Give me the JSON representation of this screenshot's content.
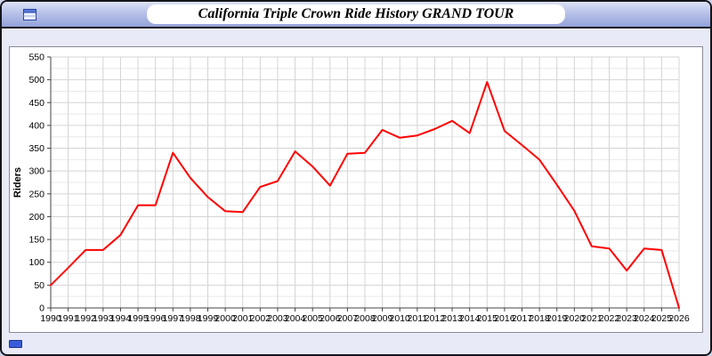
{
  "window": {
    "title": "California Triple Crown Ride History GRAND TOUR"
  },
  "icons": {
    "titlebar_icon": "window-icon",
    "bottom_chip": "blue-chip"
  },
  "colors": {
    "page_background": "#e9eaf7",
    "titlebar_gradient_top": "#dde2f5",
    "titlebar_gradient_bottom": "#93a2da",
    "panel_background": "#ffffff",
    "line": "#ff0000",
    "grid_major": "#d4d4d4",
    "grid_minor": "#e9e9e9",
    "axis": "#444444",
    "chip_blue": "#3a5bd9"
  },
  "chart_data": {
    "type": "line",
    "title": "California Triple Crown Ride History GRAND TOUR",
    "xlabel": "",
    "ylabel": "Riders",
    "x": [
      1990,
      1991,
      1992,
      1993,
      1994,
      1995,
      1996,
      1997,
      1998,
      1999,
      2000,
      2001,
      2002,
      2003,
      2004,
      2005,
      2006,
      2007,
      2008,
      2009,
      2010,
      2011,
      2012,
      2013,
      2014,
      2015,
      2016,
      2017,
      2018,
      2019,
      2020,
      2021,
      2022,
      2023,
      2024,
      2025,
      2026
    ],
    "values": [
      50,
      88,
      127,
      127,
      160,
      225,
      225,
      340,
      285,
      243,
      212,
      210,
      265,
      278,
      343,
      310,
      268,
      338,
      340,
      390,
      373,
      378,
      392,
      410,
      383,
      495,
      388,
      357,
      325,
      270,
      213,
      135,
      130,
      82,
      130,
      127,
      0
    ],
    "ylim": [
      0,
      550
    ],
    "ytick_step": 50,
    "ytick_minor_step": 25,
    "grid": true,
    "legend": "none",
    "line_color": "#ff0000"
  }
}
